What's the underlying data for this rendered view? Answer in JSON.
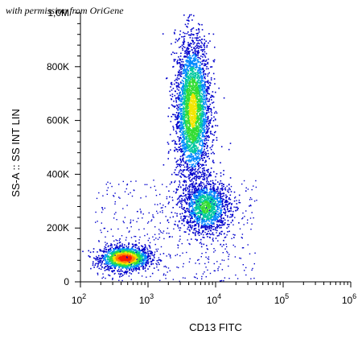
{
  "watermark": "with permission from OriGene",
  "chart_data": {
    "type": "scatter",
    "title": "",
    "xlabel": "CD13 FITC",
    "ylabel": "SS-A :: SS INT LIN",
    "x_scale": "log",
    "xlim": [
      100,
      1000000
    ],
    "ylim": [
      0,
      1000000
    ],
    "x_ticks": [
      {
        "value": 100,
        "base": "10",
        "exp": "2"
      },
      {
        "value": 1000,
        "base": "10",
        "exp": "3"
      },
      {
        "value": 10000,
        "base": "10",
        "exp": "4"
      },
      {
        "value": 100000,
        "base": "10",
        "exp": "5"
      },
      {
        "value": 1000000,
        "base": "10",
        "exp": "6"
      }
    ],
    "y_ticks": [
      {
        "value": 0,
        "label": "0"
      },
      {
        "value": 200000,
        "label": "200K"
      },
      {
        "value": 400000,
        "label": "400K"
      },
      {
        "value": 600000,
        "label": "600K"
      },
      {
        "value": 800000,
        "label": "800K"
      },
      {
        "value": 1000000,
        "label": "1,0M"
      }
    ],
    "grid": false,
    "coloring": "density (blue low → green → yellow → red high)",
    "populations": [
      {
        "name": "",
        "x_center": 450,
        "y_center": 90000,
        "x_spread_decades": 0.18,
        "y_spread": 22000,
        "density": "highest"
      },
      {
        "name": "",
        "x_center": 4500,
        "y_center": 640000,
        "x_spread_decades": 0.13,
        "y_spread": 135000,
        "density": "medium"
      },
      {
        "name": "",
        "x_center": 7000,
        "y_center": 280000,
        "x_spread_decades": 0.18,
        "y_spread": 50000,
        "density": "medium-low"
      }
    ],
    "colors": {
      "low": "#0000cc",
      "mid": "#00cc66",
      "high": "#ff0000"
    }
  }
}
